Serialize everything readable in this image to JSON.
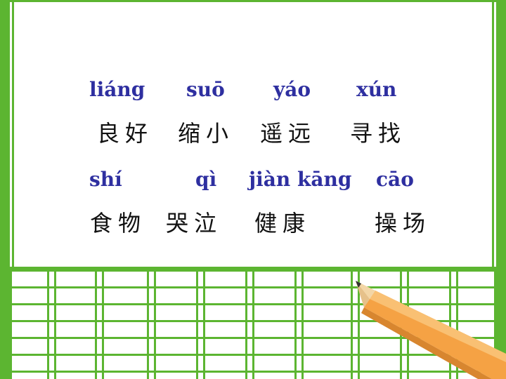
{
  "rows": [
    {
      "pinyin": [
        "liáng",
        "suō",
        "yáo",
        "xún"
      ],
      "words": [
        "良好",
        "缩小",
        "遥远",
        "寻找"
      ]
    },
    {
      "pinyin": [
        "shí",
        "qì",
        "jiàn kāng",
        "cāo"
      ],
      "words": [
        "食物",
        "哭泣",
        "健康",
        "操场"
      ]
    }
  ],
  "colors": {
    "grid_green": "#5cb531",
    "pinyin_blue": "#2e2fa0",
    "pencil_orange": "#f5a244"
  },
  "icons": {
    "pencil": "pencil-icon"
  }
}
